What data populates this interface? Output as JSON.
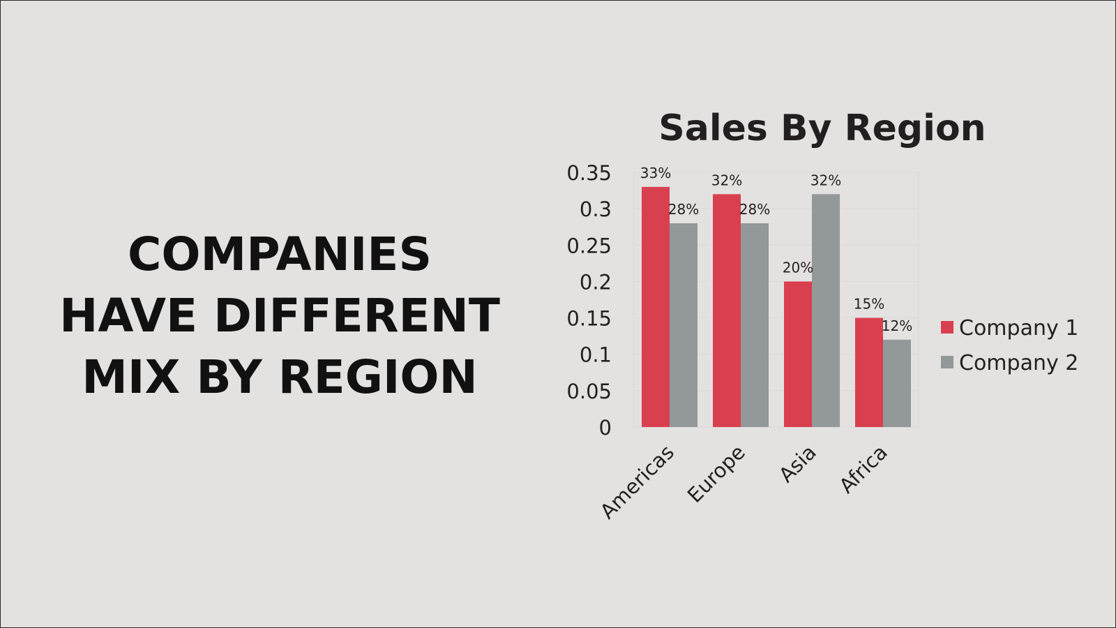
{
  "headline": {
    "lines": [
      "COMPANIES",
      "HAVE DIFFERENT",
      "MIX BY REGION"
    ]
  },
  "chart_data": {
    "type": "bar",
    "title": "Sales By Region",
    "categories": [
      "Americas",
      "Europe",
      "Asia",
      "Africa"
    ],
    "series": [
      {
        "name": "Company 1",
        "values": [
          0.33,
          0.32,
          0.2,
          0.15
        ],
        "labels": [
          "33%",
          "32%",
          "20%",
          "15%"
        ],
        "color": "#d9404f"
      },
      {
        "name": "Company 2",
        "values": [
          0.28,
          0.28,
          0.32,
          0.12
        ],
        "labels": [
          "28%",
          "28%",
          "32%",
          "12%"
        ],
        "color": "#939899"
      }
    ],
    "yticks": [
      "0",
      "0.05",
      "0.1",
      "0.15",
      "0.2",
      "0.25",
      "0.3",
      "0.35"
    ],
    "ylim": [
      0,
      0.35
    ],
    "xlabel": "",
    "ylabel": "",
    "grid": true,
    "legend": "right"
  }
}
